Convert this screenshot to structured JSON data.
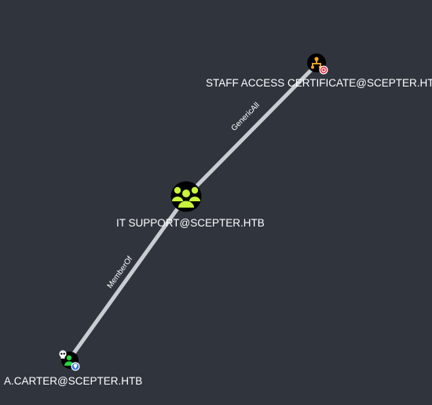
{
  "graph": {
    "background": "#2f343d",
    "edge_color": "#c9ccd1",
    "nodes": [
      {
        "id": "n1",
        "label": "STAFF ACCESS CERTIFICATE@SCEPTER.HTB",
        "kind": "certificate-template",
        "icon": "certificate-template-icon",
        "badge": "target-icon",
        "fill": "#f5a623",
        "badge_color": "#e0202f"
      },
      {
        "id": "n2",
        "label": "IT SUPPORT@SCEPTER.HTB",
        "kind": "group",
        "icon": "group-icon",
        "fill": "#c8f53a"
      },
      {
        "id": "n3",
        "label": "A.CARTER@SCEPTER.HTB",
        "kind": "user",
        "icon": "user-icon",
        "badge": "map-pin-icon",
        "extra_badge": "skull-icon",
        "fill": "#27d545",
        "badge_color": "#2f6fe0"
      }
    ],
    "edges": [
      {
        "from": "n2",
        "to": "n1",
        "label": "GenericAll"
      },
      {
        "from": "n3",
        "to": "n2",
        "label": "MemberOf"
      }
    ]
  }
}
